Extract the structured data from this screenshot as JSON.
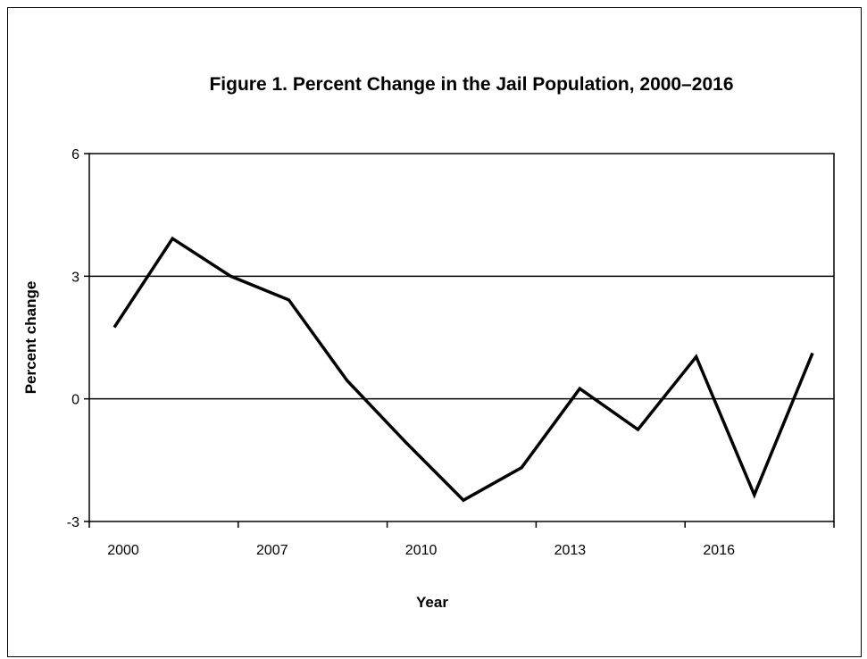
{
  "chart_data": {
    "type": "line",
    "title": "Figure 1. Percent Change in the Jail Population, 2000–2016",
    "xlabel": "Year",
    "ylabel": "Percent change",
    "x_tick_labels": [
      "2000",
      "2007",
      "2010",
      "2013",
      "2016"
    ],
    "y_ticks": [
      -3,
      0,
      3,
      6
    ],
    "ylim": [
      -3,
      6
    ],
    "gridlines_at": [
      0,
      3
    ],
    "legend": "none",
    "line_color": "#000000",
    "series": [
      {
        "values": [
          1.75,
          3.92,
          3.0,
          2.42,
          0.45,
          -1.05,
          -2.48,
          -1.68,
          0.25,
          -0.75,
          1.03,
          -2.35,
          1.12
        ]
      }
    ]
  }
}
